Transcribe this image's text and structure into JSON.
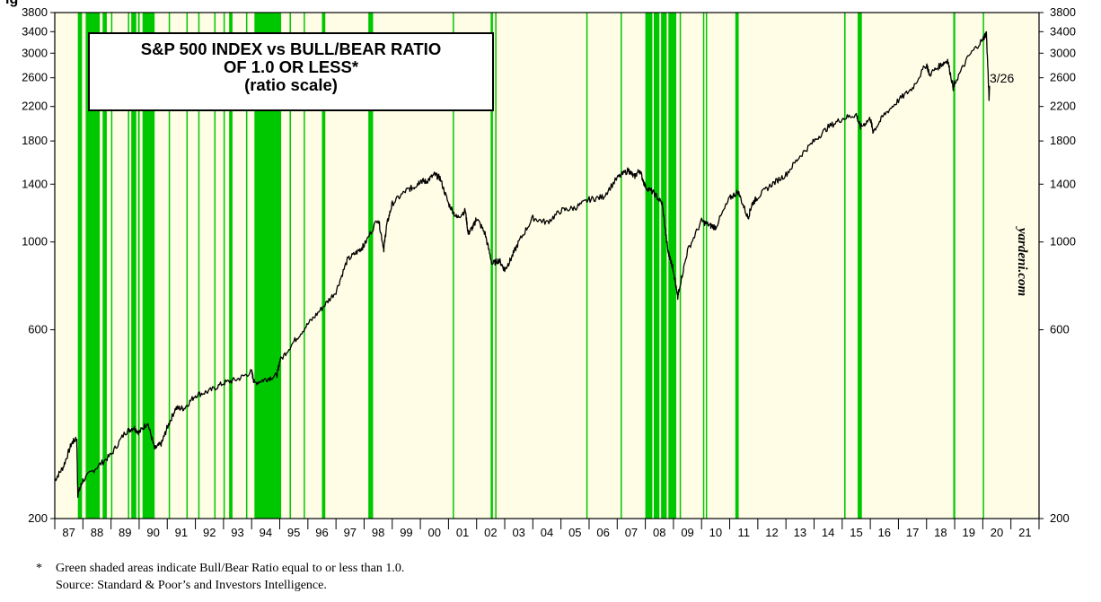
{
  "header_fragment": "ig",
  "chart_data": {
    "type": "line",
    "title": [
      "S&P 500 INDEX vs BULL/BEAR RATIO",
      "OF 1.0 OR LESS*",
      "(ratio scale)"
    ],
    "y_scale": "log",
    "ylim": [
      200,
      3800
    ],
    "y_ticks": [
      200,
      600,
      1000,
      1400,
      1800,
      2200,
      2600,
      3000,
      3400,
      3800
    ],
    "x_range": [
      1987,
      2022
    ],
    "x_tick_labels": [
      "87",
      "88",
      "89",
      "90",
      "91",
      "92",
      "93",
      "94",
      "95",
      "96",
      "97",
      "98",
      "99",
      "00",
      "01",
      "02",
      "03",
      "04",
      "05",
      "06",
      "07",
      "08",
      "09",
      "10",
      "11",
      "12",
      "13",
      "14",
      "15",
      "16",
      "17",
      "18",
      "19",
      "20",
      "21"
    ],
    "annotation": "3/26",
    "watermark": "yardeni.com",
    "colors": {
      "background": "#fffde6",
      "shading": "#00c800",
      "line": "#000000"
    },
    "series": [
      {
        "values_x": [
          1987.0,
          1987.3,
          1987.6,
          1987.78,
          1987.82,
          1988.0,
          1988.5,
          1989.0,
          1989.5,
          1989.8,
          1990.0,
          1990.3,
          1990.55,
          1990.8,
          1991.0,
          1991.3,
          1991.6,
          1992.0,
          1992.5,
          1993.0,
          1993.5,
          1994.0,
          1994.1,
          1994.5,
          1994.9,
          1995.0,
          1995.5,
          1996.0,
          1996.5,
          1997.0,
          1997.4,
          1997.8,
          1998.0,
          1998.5,
          1998.7,
          1998.8,
          1999.0,
          1999.5,
          1999.8,
          2000.0,
          2000.2,
          2000.5,
          2000.7,
          2001.0,
          2001.3,
          2001.6,
          2001.7,
          2001.9,
          2002.0,
          2002.3,
          2002.55,
          2002.8,
          2003.0,
          2003.2,
          2003.5,
          2004.0,
          2004.5,
          2005.0,
          2005.5,
          2006.0,
          2006.5,
          2007.0,
          2007.4,
          2007.6,
          2007.8,
          2008.0,
          2008.3,
          2008.6,
          2008.8,
          2008.9,
          2009.0,
          2009.15,
          2009.2,
          2009.5,
          2010.0,
          2010.3,
          2010.5,
          2011.0,
          2011.3,
          2011.65,
          2011.8,
          2012.0,
          2012.5,
          2013.0,
          2013.5,
          2014.0,
          2014.5,
          2015.0,
          2015.5,
          2015.65,
          2016.0,
          2016.1,
          2016.5,
          2017.0,
          2017.5,
          2018.0,
          2018.1,
          2018.5,
          2018.75,
          2018.95,
          2019.0,
          2019.5,
          2020.0,
          2020.13,
          2020.22,
          2020.24
        ],
        "values_y": [
          250,
          270,
          310,
          320,
          230,
          250,
          270,
          290,
          330,
          340,
          330,
          350,
          300,
          310,
          340,
          380,
          380,
          410,
          420,
          440,
          450,
          470,
          440,
          450,
          460,
          500,
          560,
          620,
          680,
          750,
          900,
          950,
          980,
          1150,
          960,
          1100,
          1250,
          1350,
          1380,
          1430,
          1420,
          1480,
          1450,
          1250,
          1150,
          1200,
          1050,
          1100,
          1150,
          1050,
          880,
          900,
          850,
          900,
          1000,
          1150,
          1120,
          1200,
          1220,
          1280,
          1300,
          1450,
          1520,
          1460,
          1520,
          1380,
          1330,
          1250,
          950,
          900,
          850,
          720,
          760,
          950,
          1130,
          1100,
          1090,
          1290,
          1340,
          1150,
          1250,
          1300,
          1400,
          1480,
          1650,
          1800,
          1950,
          2050,
          2100,
          1950,
          2050,
          1900,
          2100,
          2280,
          2450,
          2820,
          2650,
          2800,
          2880,
          2450,
          2520,
          2950,
          3250,
          3380,
          2300,
          2480
        ]
      }
    ],
    "shaded_periods": [
      [
        1987.82,
        1987.97
      ],
      [
        1988.1,
        1988.6
      ],
      [
        1988.7,
        1988.85
      ],
      [
        1989.0,
        1989.02
      ],
      [
        1989.6,
        1989.64
      ],
      [
        1989.72,
        1989.9
      ],
      [
        1989.96,
        1990.02
      ],
      [
        1990.12,
        1990.55
      ],
      [
        1991.05,
        1991.08
      ],
      [
        1991.68,
        1991.71
      ],
      [
        1992.1,
        1992.13
      ],
      [
        1992.67,
        1992.7
      ],
      [
        1993.0,
        1993.04
      ],
      [
        1993.2,
        1993.32
      ],
      [
        1993.8,
        1993.84
      ],
      [
        1994.1,
        1995.05
      ],
      [
        1995.35,
        1995.38
      ],
      [
        1995.85,
        1995.88
      ],
      [
        1996.5,
        1996.62
      ],
      [
        1998.15,
        1998.32
      ],
      [
        2001.15,
        2001.18
      ],
      [
        2002.5,
        2002.58
      ],
      [
        2002.66,
        2002.7
      ],
      [
        2005.9,
        2005.93
      ],
      [
        2007.12,
        2007.16
      ],
      [
        2008.0,
        2008.25
      ],
      [
        2008.3,
        2008.5
      ],
      [
        2008.56,
        2008.76
      ],
      [
        2008.82,
        2009.1
      ],
      [
        2009.22,
        2009.26
      ],
      [
        2010.05,
        2010.08
      ],
      [
        2010.15,
        2010.18
      ],
      [
        2011.2,
        2011.32
      ],
      [
        2015.07,
        2015.12
      ],
      [
        2015.55,
        2015.7
      ],
      [
        2018.95,
        2019.02
      ],
      [
        2020.0,
        2020.04
      ]
    ]
  },
  "footnote": {
    "marker": "*",
    "line1": "Green shaded areas indicate Bull/Bear Ratio equal to or less than 1.0.",
    "line2": "Source: Standard & Poor’s and Investors Intelligence."
  }
}
